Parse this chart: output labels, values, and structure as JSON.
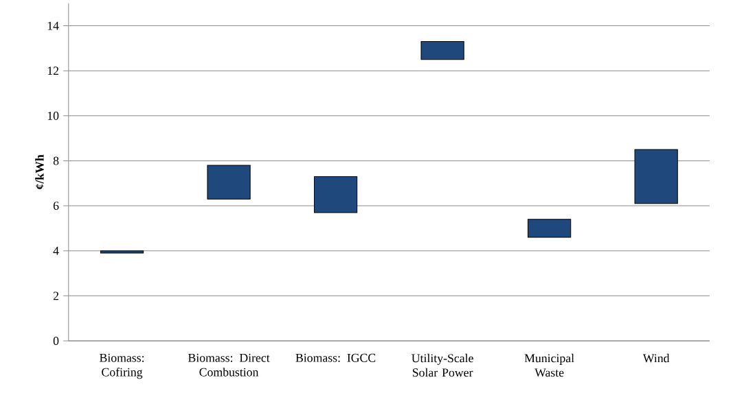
{
  "chart_data": {
    "type": "bar",
    "ylabel": "¢/kWh",
    "categories": [
      "Biomass: Cofiring",
      "Biomass: Direct Combustion",
      "Biomass: IGCC",
      "Utility-Scale Solar Power",
      "Municipal Waste",
      "Wind"
    ],
    "base": [
      3.9,
      6.3,
      5.7,
      12.5,
      4.6,
      6.1
    ],
    "values": [
      0.1,
      1.5,
      1.6,
      0.8,
      0.8,
      2.4
    ],
    "color": "#1f497d",
    "ylim": [
      0,
      15
    ],
    "yticks": [
      0,
      2,
      4,
      6,
      8,
      10,
      12,
      14
    ],
    "grid": "y"
  }
}
